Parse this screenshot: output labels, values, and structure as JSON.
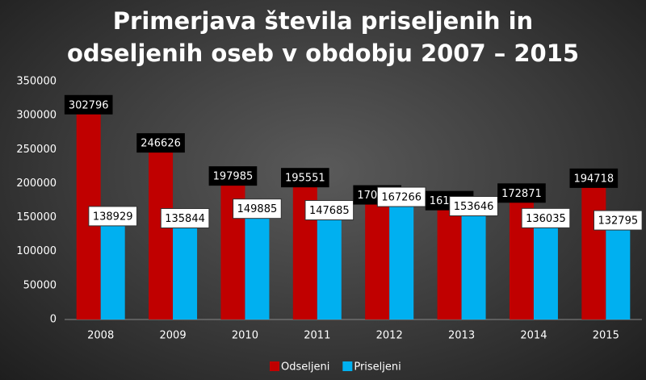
{
  "chart_data": {
    "type": "bar",
    "title": "Primerjava števila priseljenih in odseljenih oseb v obdobju 2007 – 2015",
    "categories": [
      "2008",
      "2009",
      "2010",
      "2011",
      "2012",
      "2013",
      "2014",
      "2015"
    ],
    "series": [
      {
        "name": "Odseljeni",
        "color": "#c00000",
        "values": [
          302796,
          246626,
          197985,
          195551,
          170186,
          161755,
          172871,
          194718
        ]
      },
      {
        "name": "Priseljeni",
        "color": "#00b0f0",
        "values": [
          138929,
          135844,
          149885,
          147685,
          167266,
          153646,
          136035,
          132795
        ]
      }
    ],
    "ylim": [
      0,
      350000
    ],
    "yticks": [
      0,
      50000,
      100000,
      150000,
      200000,
      250000,
      300000,
      350000
    ],
    "legend": "bottom"
  }
}
